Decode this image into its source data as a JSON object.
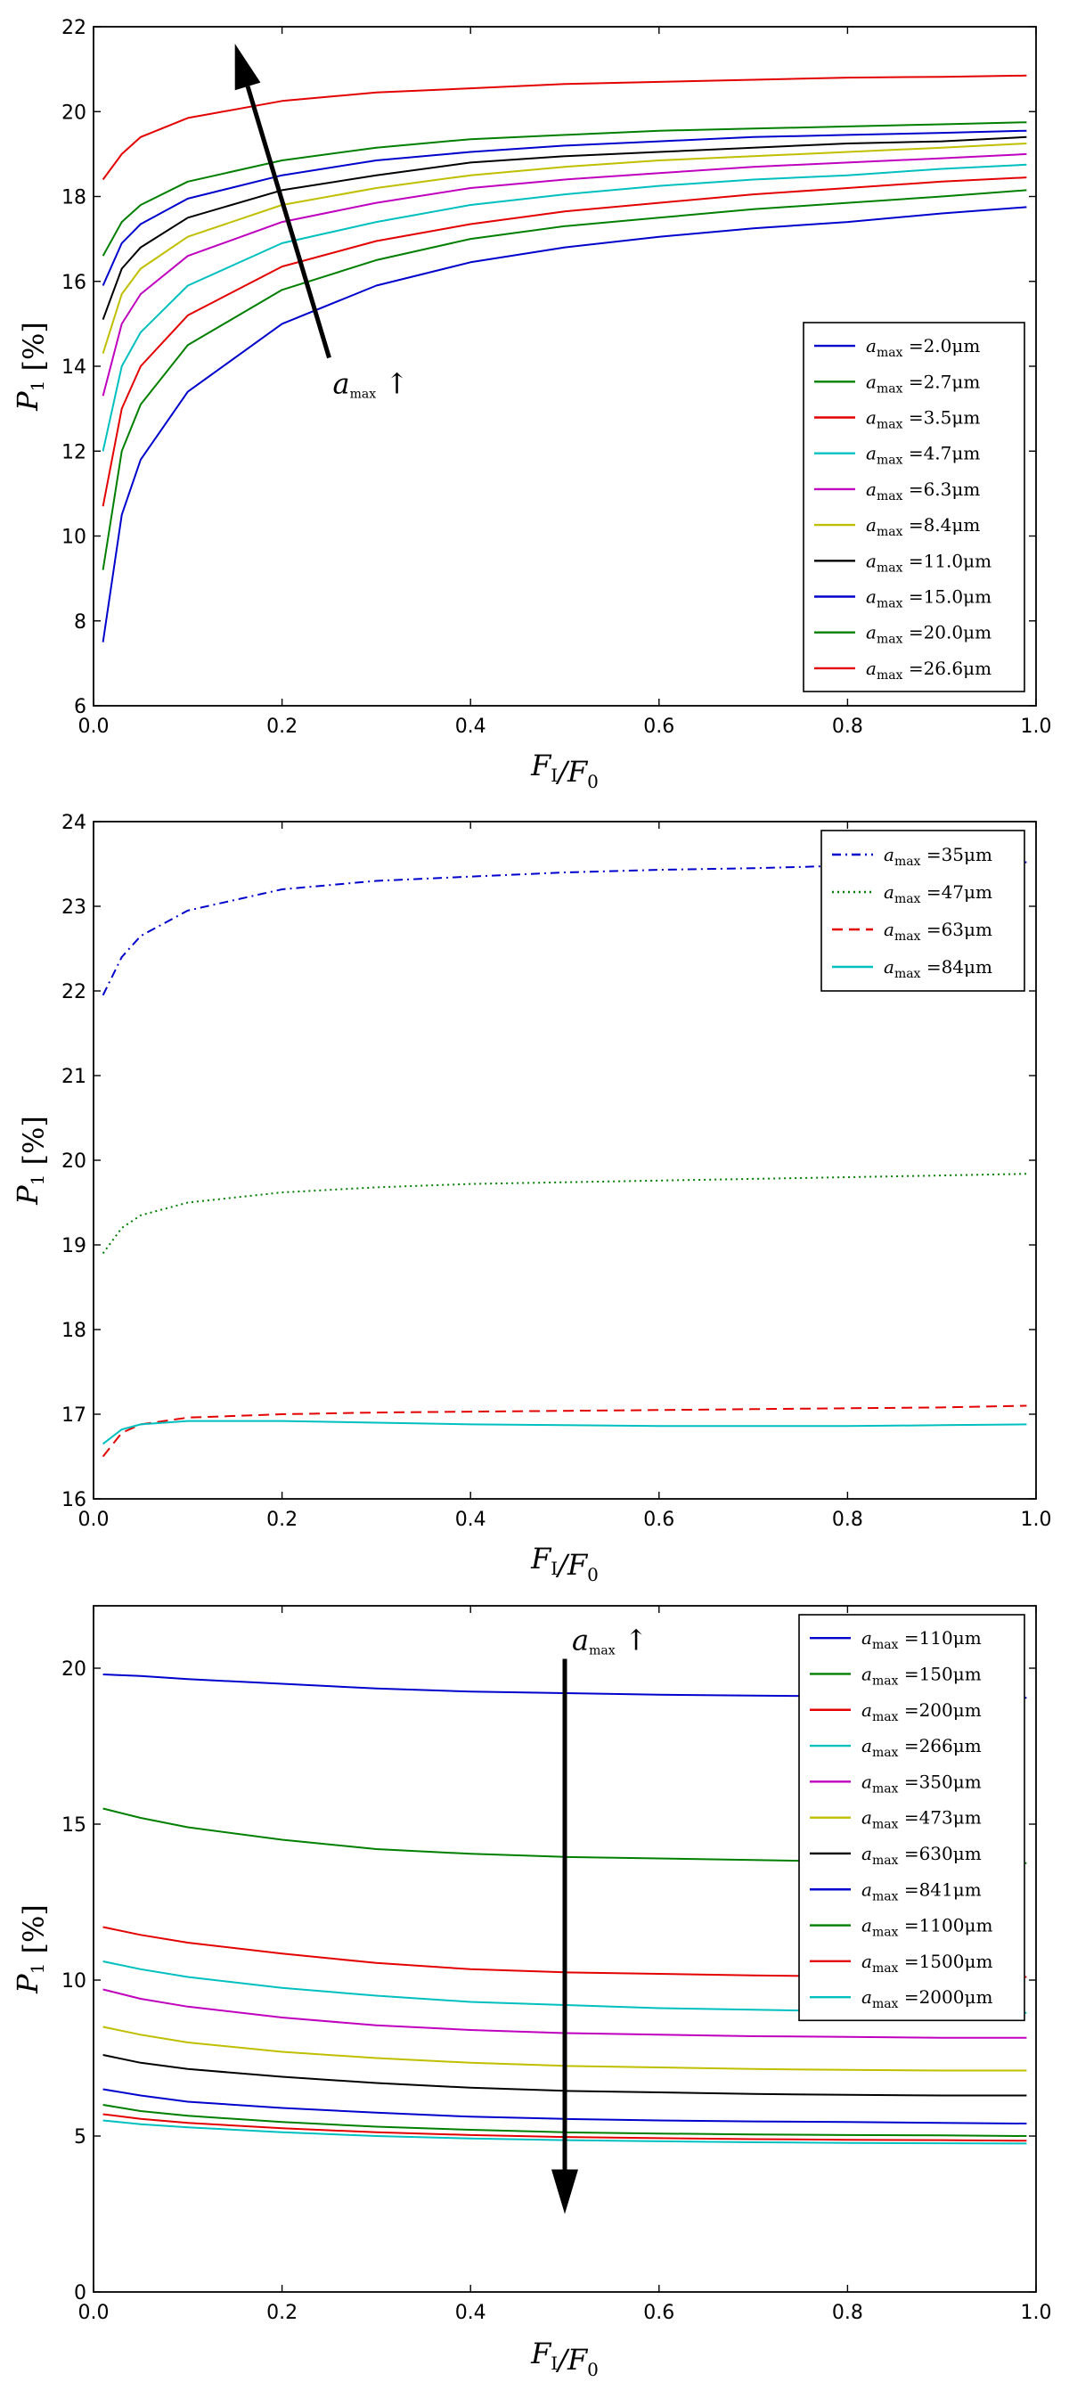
{
  "chart_data": [
    {
      "type": "line",
      "title": "",
      "xlabel": "F_I/F_0",
      "ylabel": "P_1 [%]",
      "xlim": [
        0.0,
        1.0
      ],
      "ylim": [
        6,
        22
      ],
      "xticks": [
        "0.0",
        "0.2",
        "0.4",
        "0.6",
        "0.8",
        "1.0"
      ],
      "yticks": [
        "6",
        "8",
        "10",
        "12",
        "14",
        "16",
        "18",
        "20",
        "22"
      ],
      "legend_position": "lower-right",
      "annotation": {
        "text": "a_max ↑",
        "arrow_from": [
          0.25,
          14.2
        ],
        "arrow_to": [
          0.15,
          21.6
        ]
      },
      "series": [
        {
          "name": "a_max =2.0μm",
          "color": "#0000cc",
          "dash": "solid",
          "x": [
            0.01,
            0.03,
            0.05,
            0.1,
            0.2,
            0.3,
            0.4,
            0.5,
            0.6,
            0.7,
            0.8,
            0.9,
            0.99
          ],
          "values": [
            7.5,
            10.5,
            11.8,
            13.4,
            15.0,
            15.9,
            16.45,
            16.8,
            17.05,
            17.25,
            17.4,
            17.6,
            17.75
          ]
        },
        {
          "name": "a_max =2.7μm",
          "color": "#007f00",
          "dash": "solid",
          "x": [
            0.01,
            0.03,
            0.05,
            0.1,
            0.2,
            0.3,
            0.4,
            0.5,
            0.6,
            0.7,
            0.8,
            0.9,
            0.99
          ],
          "values": [
            9.2,
            12.0,
            13.1,
            14.5,
            15.8,
            16.5,
            17.0,
            17.3,
            17.5,
            17.7,
            17.85,
            18.0,
            18.15
          ]
        },
        {
          "name": "a_max =3.5μm",
          "color": "#e30000",
          "dash": "solid",
          "x": [
            0.01,
            0.03,
            0.05,
            0.1,
            0.2,
            0.3,
            0.4,
            0.5,
            0.6,
            0.7,
            0.8,
            0.9,
            0.99
          ],
          "values": [
            10.7,
            13.0,
            14.0,
            15.2,
            16.35,
            16.95,
            17.35,
            17.65,
            17.85,
            18.05,
            18.2,
            18.35,
            18.45
          ]
        },
        {
          "name": "a_max =4.7μm",
          "color": "#00bfbf",
          "dash": "solid",
          "x": [
            0.01,
            0.03,
            0.05,
            0.1,
            0.2,
            0.3,
            0.4,
            0.5,
            0.6,
            0.7,
            0.8,
            0.9,
            0.99
          ],
          "values": [
            12.0,
            14.0,
            14.8,
            15.9,
            16.9,
            17.4,
            17.8,
            18.05,
            18.25,
            18.4,
            18.5,
            18.65,
            18.75
          ]
        },
        {
          "name": "a_max =6.3μm",
          "color": "#bf00bf",
          "dash": "solid",
          "x": [
            0.01,
            0.03,
            0.05,
            0.1,
            0.2,
            0.3,
            0.4,
            0.5,
            0.6,
            0.7,
            0.8,
            0.9,
            0.99
          ],
          "values": [
            13.3,
            15.0,
            15.7,
            16.6,
            17.4,
            17.85,
            18.2,
            18.4,
            18.55,
            18.7,
            18.8,
            18.9,
            19.0
          ]
        },
        {
          "name": "a_max =8.4μm",
          "color": "#bfbf00",
          "dash": "solid",
          "x": [
            0.01,
            0.03,
            0.05,
            0.1,
            0.2,
            0.3,
            0.4,
            0.5,
            0.6,
            0.7,
            0.8,
            0.9,
            0.99
          ],
          "values": [
            14.3,
            15.7,
            16.3,
            17.05,
            17.8,
            18.2,
            18.5,
            18.7,
            18.85,
            18.95,
            19.05,
            19.15,
            19.25
          ]
        },
        {
          "name": "a_max =11.0μm",
          "color": "#000000",
          "dash": "solid",
          "x": [
            0.01,
            0.03,
            0.05,
            0.1,
            0.2,
            0.3,
            0.4,
            0.5,
            0.6,
            0.7,
            0.8,
            0.9,
            0.99
          ],
          "values": [
            15.1,
            16.3,
            16.8,
            17.5,
            18.15,
            18.5,
            18.8,
            18.95,
            19.05,
            19.15,
            19.25,
            19.3,
            19.4
          ]
        },
        {
          "name": "a_max =15.0μm",
          "color": "#0000cc",
          "dash": "solid",
          "x": [
            0.01,
            0.03,
            0.05,
            0.1,
            0.2,
            0.3,
            0.4,
            0.5,
            0.6,
            0.7,
            0.8,
            0.9,
            0.99
          ],
          "values": [
            15.9,
            16.9,
            17.35,
            17.95,
            18.5,
            18.85,
            19.05,
            19.2,
            19.3,
            19.4,
            19.45,
            19.5,
            19.55
          ]
        },
        {
          "name": "a_max =20.0μm",
          "color": "#007f00",
          "dash": "solid",
          "x": [
            0.01,
            0.03,
            0.05,
            0.1,
            0.2,
            0.3,
            0.4,
            0.5,
            0.6,
            0.7,
            0.8,
            0.9,
            0.99
          ],
          "values": [
            16.6,
            17.4,
            17.8,
            18.35,
            18.85,
            19.15,
            19.35,
            19.45,
            19.55,
            19.6,
            19.65,
            19.7,
            19.75
          ]
        },
        {
          "name": "a_max =26.6μm",
          "color": "#e30000",
          "dash": "solid",
          "x": [
            0.01,
            0.03,
            0.05,
            0.1,
            0.2,
            0.3,
            0.4,
            0.5,
            0.6,
            0.7,
            0.8,
            0.9,
            0.99
          ],
          "values": [
            18.4,
            19.0,
            19.4,
            19.85,
            20.25,
            20.45,
            20.55,
            20.65,
            20.7,
            20.75,
            20.8,
            20.82,
            20.85
          ]
        }
      ]
    },
    {
      "type": "line",
      "title": "",
      "xlabel": "F_I/F_0",
      "ylabel": "P_1 [%]",
      "xlim": [
        0.0,
        1.0
      ],
      "ylim": [
        16,
        24
      ],
      "xticks": [
        "0.0",
        "0.2",
        "0.4",
        "0.6",
        "0.8",
        "1.0"
      ],
      "yticks": [
        "16",
        "17",
        "18",
        "19",
        "20",
        "21",
        "22",
        "23",
        "24"
      ],
      "legend_position": "top-right",
      "series": [
        {
          "name": "a_max =35μm",
          "color": "#0000cc",
          "dash": "dashdot",
          "x": [
            0.01,
            0.03,
            0.05,
            0.1,
            0.2,
            0.3,
            0.4,
            0.5,
            0.6,
            0.7,
            0.8,
            0.9,
            0.99
          ],
          "values": [
            21.95,
            22.4,
            22.65,
            22.95,
            23.2,
            23.3,
            23.35,
            23.4,
            23.43,
            23.45,
            23.48,
            23.5,
            23.52
          ]
        },
        {
          "name": "a_max =47μm",
          "color": "#007f00",
          "dash": "dotted",
          "x": [
            0.01,
            0.03,
            0.05,
            0.1,
            0.2,
            0.3,
            0.4,
            0.5,
            0.6,
            0.7,
            0.8,
            0.9,
            0.99
          ],
          "values": [
            18.9,
            19.2,
            19.35,
            19.5,
            19.62,
            19.68,
            19.72,
            19.74,
            19.76,
            19.78,
            19.8,
            19.82,
            19.84
          ]
        },
        {
          "name": "a_max =63μm",
          "color": "#e30000",
          "dash": "dashed",
          "x": [
            0.01,
            0.03,
            0.05,
            0.1,
            0.2,
            0.3,
            0.4,
            0.5,
            0.6,
            0.7,
            0.8,
            0.9,
            0.99
          ],
          "values": [
            16.5,
            16.78,
            16.88,
            16.96,
            17.0,
            17.02,
            17.03,
            17.04,
            17.05,
            17.06,
            17.07,
            17.08,
            17.1
          ]
        },
        {
          "name": "a_max =84μm",
          "color": "#00bfbf",
          "dash": "solid",
          "x": [
            0.01,
            0.03,
            0.05,
            0.1,
            0.2,
            0.3,
            0.4,
            0.5,
            0.6,
            0.7,
            0.8,
            0.9,
            0.99
          ],
          "values": [
            16.65,
            16.82,
            16.88,
            16.92,
            16.92,
            16.9,
            16.88,
            16.87,
            16.86,
            16.86,
            16.86,
            16.87,
            16.88
          ]
        }
      ]
    },
    {
      "type": "line",
      "title": "",
      "xlabel": "F_I/F_0",
      "ylabel": "P_1 [%]",
      "xlim": [
        0.0,
        1.0
      ],
      "ylim": [
        0,
        22
      ],
      "xticks": [
        "0.0",
        "0.2",
        "0.4",
        "0.6",
        "0.8",
        "1.0"
      ],
      "yticks": [
        "0",
        "5",
        "10",
        "15",
        "20"
      ],
      "legend_position": "top-right",
      "annotation": {
        "text": "a_max ↑",
        "arrow_from": [
          0.5,
          20.3
        ],
        "arrow_to": [
          0.5,
          2.5
        ]
      },
      "series": [
        {
          "name": "a_max =110μm",
          "color": "#0000cc",
          "dash": "solid",
          "x": [
            0.01,
            0.05,
            0.1,
            0.2,
            0.3,
            0.4,
            0.5,
            0.6,
            0.7,
            0.8,
            0.9,
            0.99
          ],
          "values": [
            19.8,
            19.75,
            19.65,
            19.5,
            19.35,
            19.25,
            19.2,
            19.15,
            19.12,
            19.1,
            19.08,
            19.05
          ]
        },
        {
          "name": "a_max =150μm",
          "color": "#007f00",
          "dash": "solid",
          "x": [
            0.01,
            0.05,
            0.1,
            0.2,
            0.3,
            0.4,
            0.5,
            0.6,
            0.7,
            0.8,
            0.9,
            0.99
          ],
          "values": [
            15.5,
            15.2,
            14.9,
            14.5,
            14.2,
            14.05,
            13.95,
            13.9,
            13.85,
            13.8,
            13.78,
            13.75
          ]
        },
        {
          "name": "a_max =200μm",
          "color": "#e30000",
          "dash": "solid",
          "x": [
            0.01,
            0.05,
            0.1,
            0.2,
            0.3,
            0.4,
            0.5,
            0.6,
            0.7,
            0.8,
            0.9,
            0.99
          ],
          "values": [
            11.7,
            11.45,
            11.2,
            10.85,
            10.55,
            10.35,
            10.25,
            10.2,
            10.15,
            10.12,
            10.1,
            10.1
          ]
        },
        {
          "name": "a_max =266μm",
          "color": "#00bfbf",
          "dash": "solid",
          "x": [
            0.01,
            0.05,
            0.1,
            0.2,
            0.3,
            0.4,
            0.5,
            0.6,
            0.7,
            0.8,
            0.9,
            0.99
          ],
          "values": [
            10.6,
            10.35,
            10.1,
            9.75,
            9.5,
            9.3,
            9.2,
            9.1,
            9.05,
            9.0,
            8.98,
            8.95
          ]
        },
        {
          "name": "a_max =350μm",
          "color": "#bf00bf",
          "dash": "solid",
          "x": [
            0.01,
            0.05,
            0.1,
            0.2,
            0.3,
            0.4,
            0.5,
            0.6,
            0.7,
            0.8,
            0.9,
            0.99
          ],
          "values": [
            9.7,
            9.4,
            9.15,
            8.8,
            8.55,
            8.4,
            8.3,
            8.25,
            8.2,
            8.18,
            8.15,
            8.15
          ]
        },
        {
          "name": "a_max =473μm",
          "color": "#bfbf00",
          "dash": "solid",
          "x": [
            0.01,
            0.05,
            0.1,
            0.2,
            0.3,
            0.4,
            0.5,
            0.6,
            0.7,
            0.8,
            0.9,
            0.99
          ],
          "values": [
            8.5,
            8.25,
            8.0,
            7.7,
            7.5,
            7.35,
            7.25,
            7.2,
            7.15,
            7.12,
            7.1,
            7.1
          ]
        },
        {
          "name": "a_max =630μm",
          "color": "#000000",
          "dash": "solid",
          "x": [
            0.01,
            0.05,
            0.1,
            0.2,
            0.3,
            0.4,
            0.5,
            0.6,
            0.7,
            0.8,
            0.9,
            0.99
          ],
          "values": [
            7.6,
            7.35,
            7.15,
            6.9,
            6.7,
            6.55,
            6.45,
            6.4,
            6.35,
            6.32,
            6.3,
            6.3
          ]
        },
        {
          "name": "a_max =841μm",
          "color": "#0000cc",
          "dash": "solid",
          "x": [
            0.01,
            0.05,
            0.1,
            0.2,
            0.3,
            0.4,
            0.5,
            0.6,
            0.7,
            0.8,
            0.9,
            0.99
          ],
          "values": [
            6.5,
            6.3,
            6.1,
            5.9,
            5.75,
            5.62,
            5.55,
            5.5,
            5.47,
            5.45,
            5.42,
            5.4
          ]
        },
        {
          "name": "a_max =1100μm",
          "color": "#007f00",
          "dash": "solid",
          "x": [
            0.01,
            0.05,
            0.1,
            0.2,
            0.3,
            0.4,
            0.5,
            0.6,
            0.7,
            0.8,
            0.9,
            0.99
          ],
          "values": [
            6.0,
            5.8,
            5.65,
            5.45,
            5.3,
            5.2,
            5.12,
            5.08,
            5.05,
            5.03,
            5.02,
            5.0
          ]
        },
        {
          "name": "a_max =1500μm",
          "color": "#e30000",
          "dash": "solid",
          "x": [
            0.01,
            0.05,
            0.1,
            0.2,
            0.3,
            0.4,
            0.5,
            0.6,
            0.7,
            0.8,
            0.9,
            0.99
          ],
          "values": [
            5.7,
            5.55,
            5.42,
            5.25,
            5.12,
            5.03,
            4.97,
            4.93,
            4.9,
            4.88,
            4.87,
            4.85
          ]
        },
        {
          "name": "a_max =2000μm",
          "color": "#00bfbf",
          "dash": "solid",
          "x": [
            0.01,
            0.05,
            0.1,
            0.2,
            0.3,
            0.4,
            0.5,
            0.6,
            0.7,
            0.8,
            0.9,
            0.99
          ],
          "values": [
            5.5,
            5.38,
            5.28,
            5.12,
            5.0,
            4.92,
            4.87,
            4.83,
            4.8,
            4.78,
            4.77,
            4.76
          ]
        }
      ]
    }
  ]
}
